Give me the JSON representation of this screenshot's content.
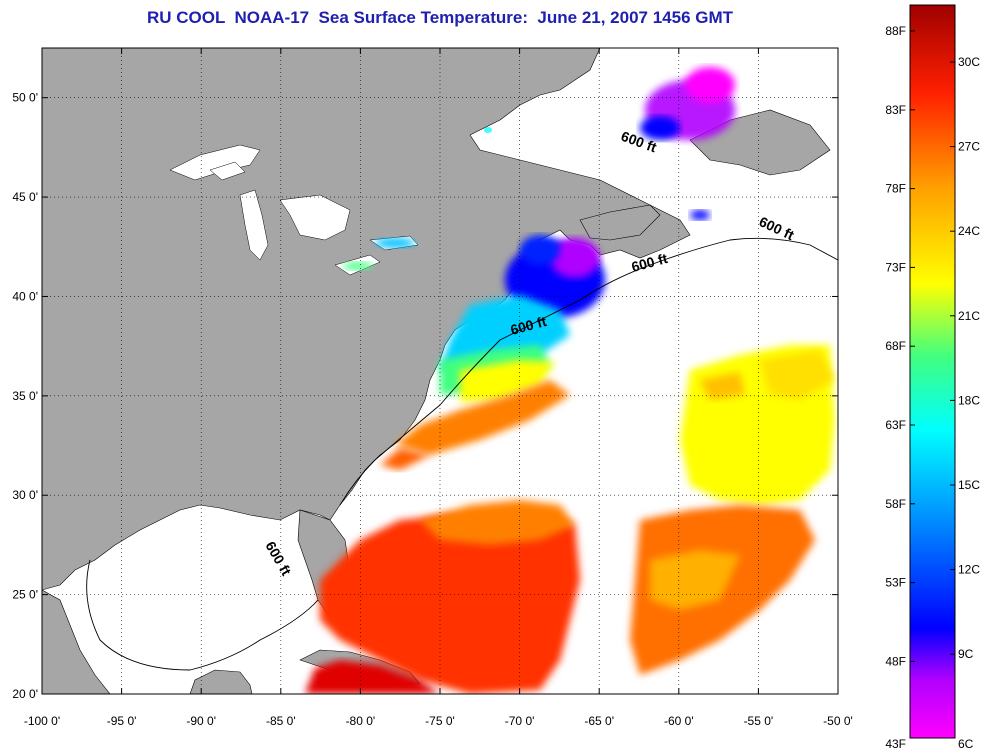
{
  "title": "RU COOL  NOAA-17  Sea Surface Temperature:  June 21, 2007 1456 GMT",
  "map": {
    "lon_range": [
      -100,
      -50
    ],
    "lat_range": [
      20,
      52.5
    ],
    "lon_ticks": [
      {
        "value": -100,
        "label": "-100 0'"
      },
      {
        "value": -95,
        "label": "-95 0'"
      },
      {
        "value": -90,
        "label": "-90 0'"
      },
      {
        "value": -85,
        "label": "-85 0'"
      },
      {
        "value": -80,
        "label": "-80 0'"
      },
      {
        "value": -75,
        "label": "-75 0'"
      },
      {
        "value": -70,
        "label": "-70 0'"
      },
      {
        "value": -65,
        "label": "-65 0'"
      },
      {
        "value": -60,
        "label": "-60 0'"
      },
      {
        "value": -55,
        "label": "-55 0'"
      },
      {
        "value": -50,
        "label": "-50 0'"
      }
    ],
    "lat_ticks": [
      {
        "value": 20,
        "label": "20 0'"
      },
      {
        "value": 25,
        "label": "25 0'"
      },
      {
        "value": 30,
        "label": "30 0'"
      },
      {
        "value": 35,
        "label": "35 0'"
      },
      {
        "value": 40,
        "label": "40 0'"
      },
      {
        "value": 45,
        "label": "45 0'"
      },
      {
        "value": 50,
        "label": "50 0'"
      }
    ],
    "contour_labels": [
      "600 ft",
      "600 ft",
      "600 ft",
      "600 ft",
      "600 ft"
    ],
    "grid": "dotted",
    "colors": {
      "land": "#a6a6a6",
      "water_no_data": "#ffffff",
      "title": "#1f1fb0"
    }
  },
  "colorbar": {
    "fahrenheit": [
      "88F",
      "83F",
      "78F",
      "73F",
      "68F",
      "63F",
      "58F",
      "53F",
      "48F",
      "43F"
    ],
    "celsius": [
      "30C",
      "27C",
      "24C",
      "21C",
      "18C",
      "15C",
      "12C",
      "9C",
      "6C"
    ],
    "stops": [
      "#ff00ff",
      "#b000ff",
      "#0000ff",
      "#0090ff",
      "#00ffff",
      "#40ff80",
      "#ffff00",
      "#ffa000",
      "#ff2000",
      "#a00000"
    ]
  }
}
